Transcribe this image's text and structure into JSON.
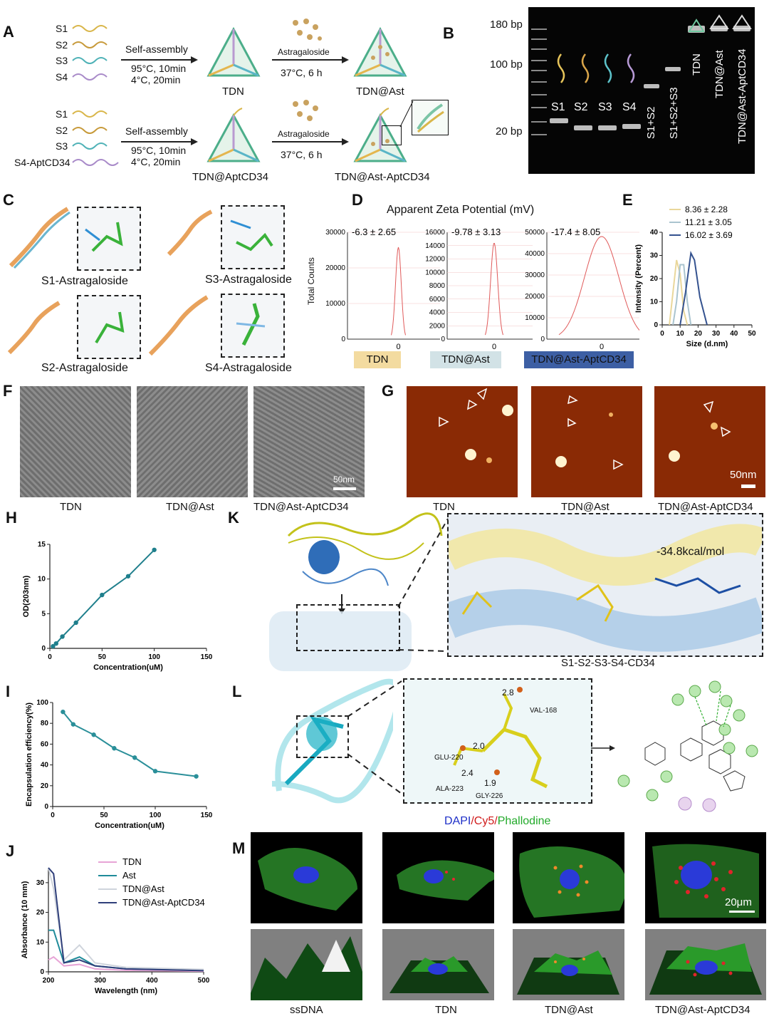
{
  "panels": {
    "A": "A",
    "B": "B",
    "C": "C",
    "D": "D",
    "E": "E",
    "F": "F",
    "G": "G",
    "H": "H",
    "I": "I",
    "J": "J",
    "K": "K",
    "L": "L",
    "M": "M"
  },
  "panelA": {
    "row1_strands": [
      "S1",
      "S2",
      "S3",
      "S4"
    ],
    "row2_strands": [
      "S1",
      "S2",
      "S3",
      "S4-AptCD34"
    ],
    "step1_label": "Self-assembly",
    "step1_cond1": "95°C, 10min",
    "step1_cond2": "4°C, 20min",
    "step2_label": "Astragaloside",
    "step2_cond": "37°C, 6 h",
    "row1_mid": "TDN",
    "row1_end": "TDN@Ast",
    "row2_mid": "TDN@AptCD34",
    "row2_end": "TDN@Ast-AptCD34"
  },
  "panelB": {
    "markers": [
      "180 bp",
      "100 bp",
      "20 bp"
    ],
    "lanes": [
      "S1",
      "S2",
      "S3",
      "S4",
      "S1+S2",
      "S1+S2+S3",
      "TDN",
      "TDN@Ast",
      "TDN@Ast-AptCD34"
    ]
  },
  "panelC": {
    "labels": [
      "S1-Astragaloside",
      "S3-Astragaloside",
      "S2-Astragaloside",
      "S4-Astragaloside"
    ]
  },
  "panelD": {
    "title": "Apparent Zeta Potential (mV)",
    "ylabel": "Total Counts",
    "plots": [
      {
        "value": "-6.3 ± 2.65",
        "name": "TDN",
        "ticks": [
          "30000",
          "20000",
          "10000",
          "0"
        ],
        "zero": "0",
        "color": "#f3dba0"
      },
      {
        "value": "-9.78 ± 3.13",
        "name": "TDN@Ast",
        "ticks": [
          "16000",
          "14000",
          "12000",
          "10000",
          "8000",
          "6000",
          "4000",
          "2000",
          "0"
        ],
        "zero": "0",
        "color": "#d2e2e6"
      },
      {
        "value": "-17.4 ± 8.05",
        "name": "TDN@Ast-AptCD34",
        "ticks": [
          "50000",
          "40000",
          "30000",
          "20000",
          "10000",
          "0"
        ],
        "zero": "0",
        "color": "#3d5fa4"
      }
    ]
  },
  "chart_data": [
    {
      "panel": "E",
      "type": "line",
      "xlabel": "Size (d.nm)",
      "ylabel": "Intensity (Percent)",
      "xlim": [
        0,
        50
      ],
      "ylim": [
        0,
        40
      ],
      "xticks": [
        "0",
        "10",
        "20",
        "30",
        "40",
        "50"
      ],
      "yticks": [
        "0",
        "10",
        "20",
        "30",
        "40"
      ],
      "legend": "top",
      "series": [
        {
          "name": "8.36 ± 2.28",
          "color": "#e9d79b",
          "x": [
            4,
            6,
            8,
            10,
            12,
            14
          ],
          "y": [
            0,
            14,
            28,
            22,
            6,
            0
          ]
        },
        {
          "name": "11.21 ± 3.05",
          "color": "#aac4cf",
          "x": [
            6,
            8,
            10,
            12,
            14,
            16
          ],
          "y": [
            0,
            10,
            26,
            26,
            10,
            0
          ]
        },
        {
          "name": "16.02 ± 3.69",
          "color": "#34528f",
          "x": [
            10,
            13,
            16,
            18,
            21,
            25
          ],
          "y": [
            0,
            14,
            31,
            28,
            12,
            0
          ]
        }
      ]
    },
    {
      "panel": "H",
      "type": "line",
      "xlabel": "Concentration(uM)",
      "ylabel": "OD(203nm)",
      "xlim": [
        0,
        150
      ],
      "ylim": [
        0,
        15
      ],
      "xticks": [
        "0",
        "50",
        "100",
        "150"
      ],
      "yticks": [
        "0",
        "5",
        "10",
        "15"
      ],
      "series": [
        {
          "name": "",
          "color": "#1f7f8c",
          "x": [
            3,
            6,
            12,
            25,
            50,
            75,
            100
          ],
          "y": [
            0.3,
            0.7,
            1.7,
            3.7,
            7.7,
            10.4,
            14.2
          ]
        }
      ]
    },
    {
      "panel": "I",
      "type": "line",
      "xlabel": "Concentration(uM)",
      "ylabel": "Encapsulation efficiency(%)",
      "xlim": [
        0,
        150
      ],
      "ylim": [
        0,
        100
      ],
      "xticks": [
        "0",
        "50",
        "100",
        "150"
      ],
      "yticks": [
        "0",
        "20",
        "40",
        "60",
        "80",
        "100"
      ],
      "series": [
        {
          "name": "",
          "color": "#2a8f99",
          "x": [
            10,
            20,
            40,
            60,
            80,
            100,
            140
          ],
          "y": [
            91,
            79,
            69,
            56,
            47,
            34,
            29
          ]
        }
      ]
    },
    {
      "panel": "J",
      "type": "line",
      "xlabel": "Wavelength (nm)",
      "ylabel": "Absorbance (10 mm)",
      "xlim": [
        200,
        500
      ],
      "ylim": [
        0,
        35
      ],
      "xticks": [
        "200",
        "300",
        "400",
        "500"
      ],
      "yticks": [
        "0",
        "10",
        "20",
        "30"
      ],
      "legend": "top-right",
      "series": [
        {
          "name": "TDN",
          "color": "#e7a4d6",
          "x": [
            200,
            210,
            230,
            260,
            290,
            350,
            500
          ],
          "y": [
            4,
            5,
            2,
            2.5,
            1,
            0.5,
            0.2
          ]
        },
        {
          "name": "Ast",
          "color": "#1f8b9a",
          "x": [
            200,
            210,
            230,
            260,
            290,
            350,
            500
          ],
          "y": [
            14,
            14,
            3,
            5,
            2,
            1,
            0.5
          ]
        },
        {
          "name": "TDN@Ast",
          "color": "#cfd4dc",
          "x": [
            200,
            210,
            230,
            260,
            290,
            350,
            500
          ],
          "y": [
            35,
            28,
            4,
            9,
            3,
            1.5,
            0.8
          ]
        },
        {
          "name": "TDN@Ast-AptCD34",
          "color": "#2f3f7a",
          "x": [
            200,
            210,
            230,
            260,
            290,
            350,
            500
          ],
          "y": [
            35,
            33,
            3,
            4,
            2,
            1,
            0.4
          ]
        }
      ]
    }
  ],
  "panelF": {
    "labels": [
      "TDN",
      "TDN@Ast",
      "TDN@Ast-AptCD34"
    ],
    "scale": "50nm"
  },
  "panelG": {
    "labels": [
      "TDN",
      "TDN@Ast",
      "TDN@Ast-AptCD34"
    ],
    "scale": "50nm"
  },
  "panelK": {
    "energy": "-34.8kcal/mol",
    "label": "S1-S2-S3-S4-CD34"
  },
  "panelL": {
    "residues": [
      "VAL-168",
      "GLU-220",
      "ALA-223",
      "GLY-226"
    ],
    "distances": [
      "2.8",
      "2.0",
      "2.4",
      "1.9"
    ]
  },
  "panelM": {
    "stain_dapi": "DAPI",
    "stain_cy5": "/Cy5/",
    "stain_phal": "Phallodine",
    "labels": [
      "ssDNA",
      "TDN",
      "TDN@Ast",
      "TDN@Ast-AptCD34"
    ],
    "scale": "20μm"
  }
}
